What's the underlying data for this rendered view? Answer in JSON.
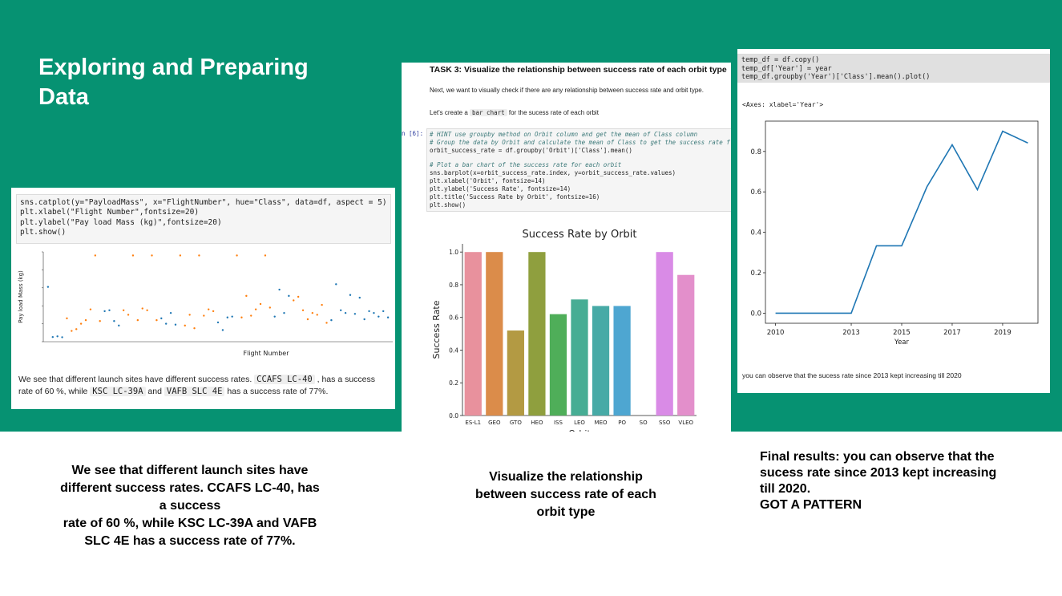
{
  "slide": {
    "title_line1": "Exploring and Preparing",
    "title_line2": "Data"
  },
  "left_panel": {
    "code": [
      "sns.catplot(y=\"PayloadMass\", x=\"FlightNumber\", hue=\"Class\", data=df, aspect = 5)",
      "plt.xlabel(\"Flight Number\",fontsize=20)",
      "plt.ylabel(\"Pay load Mass (kg)\",fontsize=20)",
      "plt.show()"
    ],
    "plot_xlabel": "Flight Number",
    "plot_ylabel": "Pay load Mass (kg)",
    "text_part1": "We see that different launch sites have different success rates. ",
    "pill1": "CCAFS LC-40",
    "text_part2": " , has a success",
    "text_part3": "rate of 60 %, while ",
    "pill2": "KSC LC-39A",
    "text_part4": " and ",
    "pill3": "VAFB SLC 4E",
    "text_part5": " has a success rate of 77%.",
    "colors": {
      "class0": "#1f77b4",
      "class1": "#ff7f0e"
    }
  },
  "middle_panel": {
    "task_title": "TASK 3: Visualize the relationship between success rate of each orbit type",
    "para1": "Next, we want to visually check if there are any relationship between success rate and orbit type.",
    "para2_pre": "Let's create a ",
    "para2_pill": "bar chart",
    "para2_post": " for the sucess rate of each orbit",
    "prompt": "n [6]:",
    "code_comments": [
      "# HINT use groupby method on Orbit column and get the mean of Class column",
      "# Group the data by Orbit and calculate the mean of Class to get the success rate f"
    ],
    "code1": "orbit_success_rate = df.groupby('Orbit')['Class'].mean()",
    "code_comment2": "# Plot a bar chart of the success rate for each orbit",
    "code2": [
      "sns.barplot(x=orbit_success_rate.index, y=orbit_success_rate.values)",
      "plt.xlabel('Orbit', fontsize=14)",
      "plt.ylabel('Success Rate', fontsize=14)",
      "plt.title('Success Rate by Orbit', fontsize=16)",
      "plt.show()"
    ]
  },
  "right_panel": {
    "code": [
      "temp_df = df.copy()",
      "temp_df['Year'] = year",
      "temp_df.groupby('Year')['Class'].mean().plot()"
    ],
    "axes_repr": "<Axes: xlabel='Year'>",
    "observation": "you can observe that the sucess rate since 2013 kept increasing till 2020"
  },
  "captions": {
    "left": [
      "We see that different launch sites have",
      "different success rates. CCAFS LC-40, has",
      "a success",
      "rate of 60 %, while KSC LC-39A and VAFB",
      "SLC 4E has a success rate of 77%."
    ],
    "middle": [
      "Visualize the relationship",
      "between success rate of each",
      "orbit type"
    ],
    "right": [
      "Final results: you can observe that the",
      "sucess rate since 2013 kept increasing",
      "till 2020.",
      "GOT  A  PATTERN"
    ]
  },
  "chart_data": [
    {
      "type": "bar",
      "title": "Success Rate by Orbit",
      "xlabel": "Orbit",
      "ylabel": "Success Rate",
      "categories": [
        "ES-L1",
        "GEO",
        "GTO",
        "HEO",
        "ISS",
        "LEO",
        "MEO",
        "PO",
        "SO",
        "SSO",
        "VLEO"
      ],
      "values": [
        1.0,
        1.0,
        0.52,
        1.0,
        0.62,
        0.71,
        0.67,
        0.67,
        0.0,
        1.0,
        0.86
      ],
      "colors": [
        "#e8919d",
        "#db8c4a",
        "#b39a43",
        "#8f9f3e",
        "#4fae59",
        "#47ad94",
        "#47aaa6",
        "#4ea6d1",
        "#a69ce6",
        "#d98be6",
        "#e38fcb"
      ],
      "ylim": [
        0,
        1.05
      ],
      "yticks": [
        0.0,
        0.2,
        0.4,
        0.6,
        0.8,
        1.0
      ]
    },
    {
      "type": "line",
      "xlabel": "Year",
      "ylabel": "",
      "x": [
        2010,
        2012,
        2013,
        2014,
        2015,
        2016,
        2017,
        2018,
        2019,
        2020
      ],
      "y": [
        0.0,
        0.0,
        0.0,
        0.333,
        0.333,
        0.625,
        0.833,
        0.611,
        0.9,
        0.842
      ],
      "color": "#1f77b4",
      "xlim": [
        2009.6,
        2020.4
      ],
      "ylim": [
        -0.05,
        0.95
      ],
      "xticks": [
        2010,
        2013,
        2015,
        2017,
        2019
      ],
      "yticks": [
        0.0,
        0.2,
        0.4,
        0.6,
        0.8
      ]
    },
    {
      "type": "scatter",
      "xlabel": "Flight Number",
      "ylabel": "Pay load Mass (kg)",
      "legend": "none",
      "series": [
        {
          "values_class0": [
            6100,
            520,
            600,
            500,
            3400,
            3500,
            2300,
            1800,
            2600,
            2000,
            3200,
            1900,
            2150,
            1300,
            2700,
            2800,
            2800,
            5800,
            3200,
            5100,
            2400,
            6400,
            3500,
            3200,
            5200,
            3100,
            4900,
            2500,
            3400,
            3200,
            2800,
            3400,
            2700
          ]
        },
        {
          "values_class1": [
            2600,
            1200,
            1400,
            2000,
            2400,
            3600,
            9600,
            2300,
            3500,
            3000,
            9600,
            2400,
            3700,
            3500,
            9600,
            2400,
            9600,
            1800,
            3000,
            1500,
            9600,
            2900,
            3600,
            3400,
            9600,
            2700,
            5100,
            2900,
            3600,
            4200,
            9600,
            3800,
            4600,
            5000,
            3500,
            2500,
            3200,
            3000,
            4100,
            2100
          ]
        }
      ],
      "ymax": 10000
    }
  ]
}
